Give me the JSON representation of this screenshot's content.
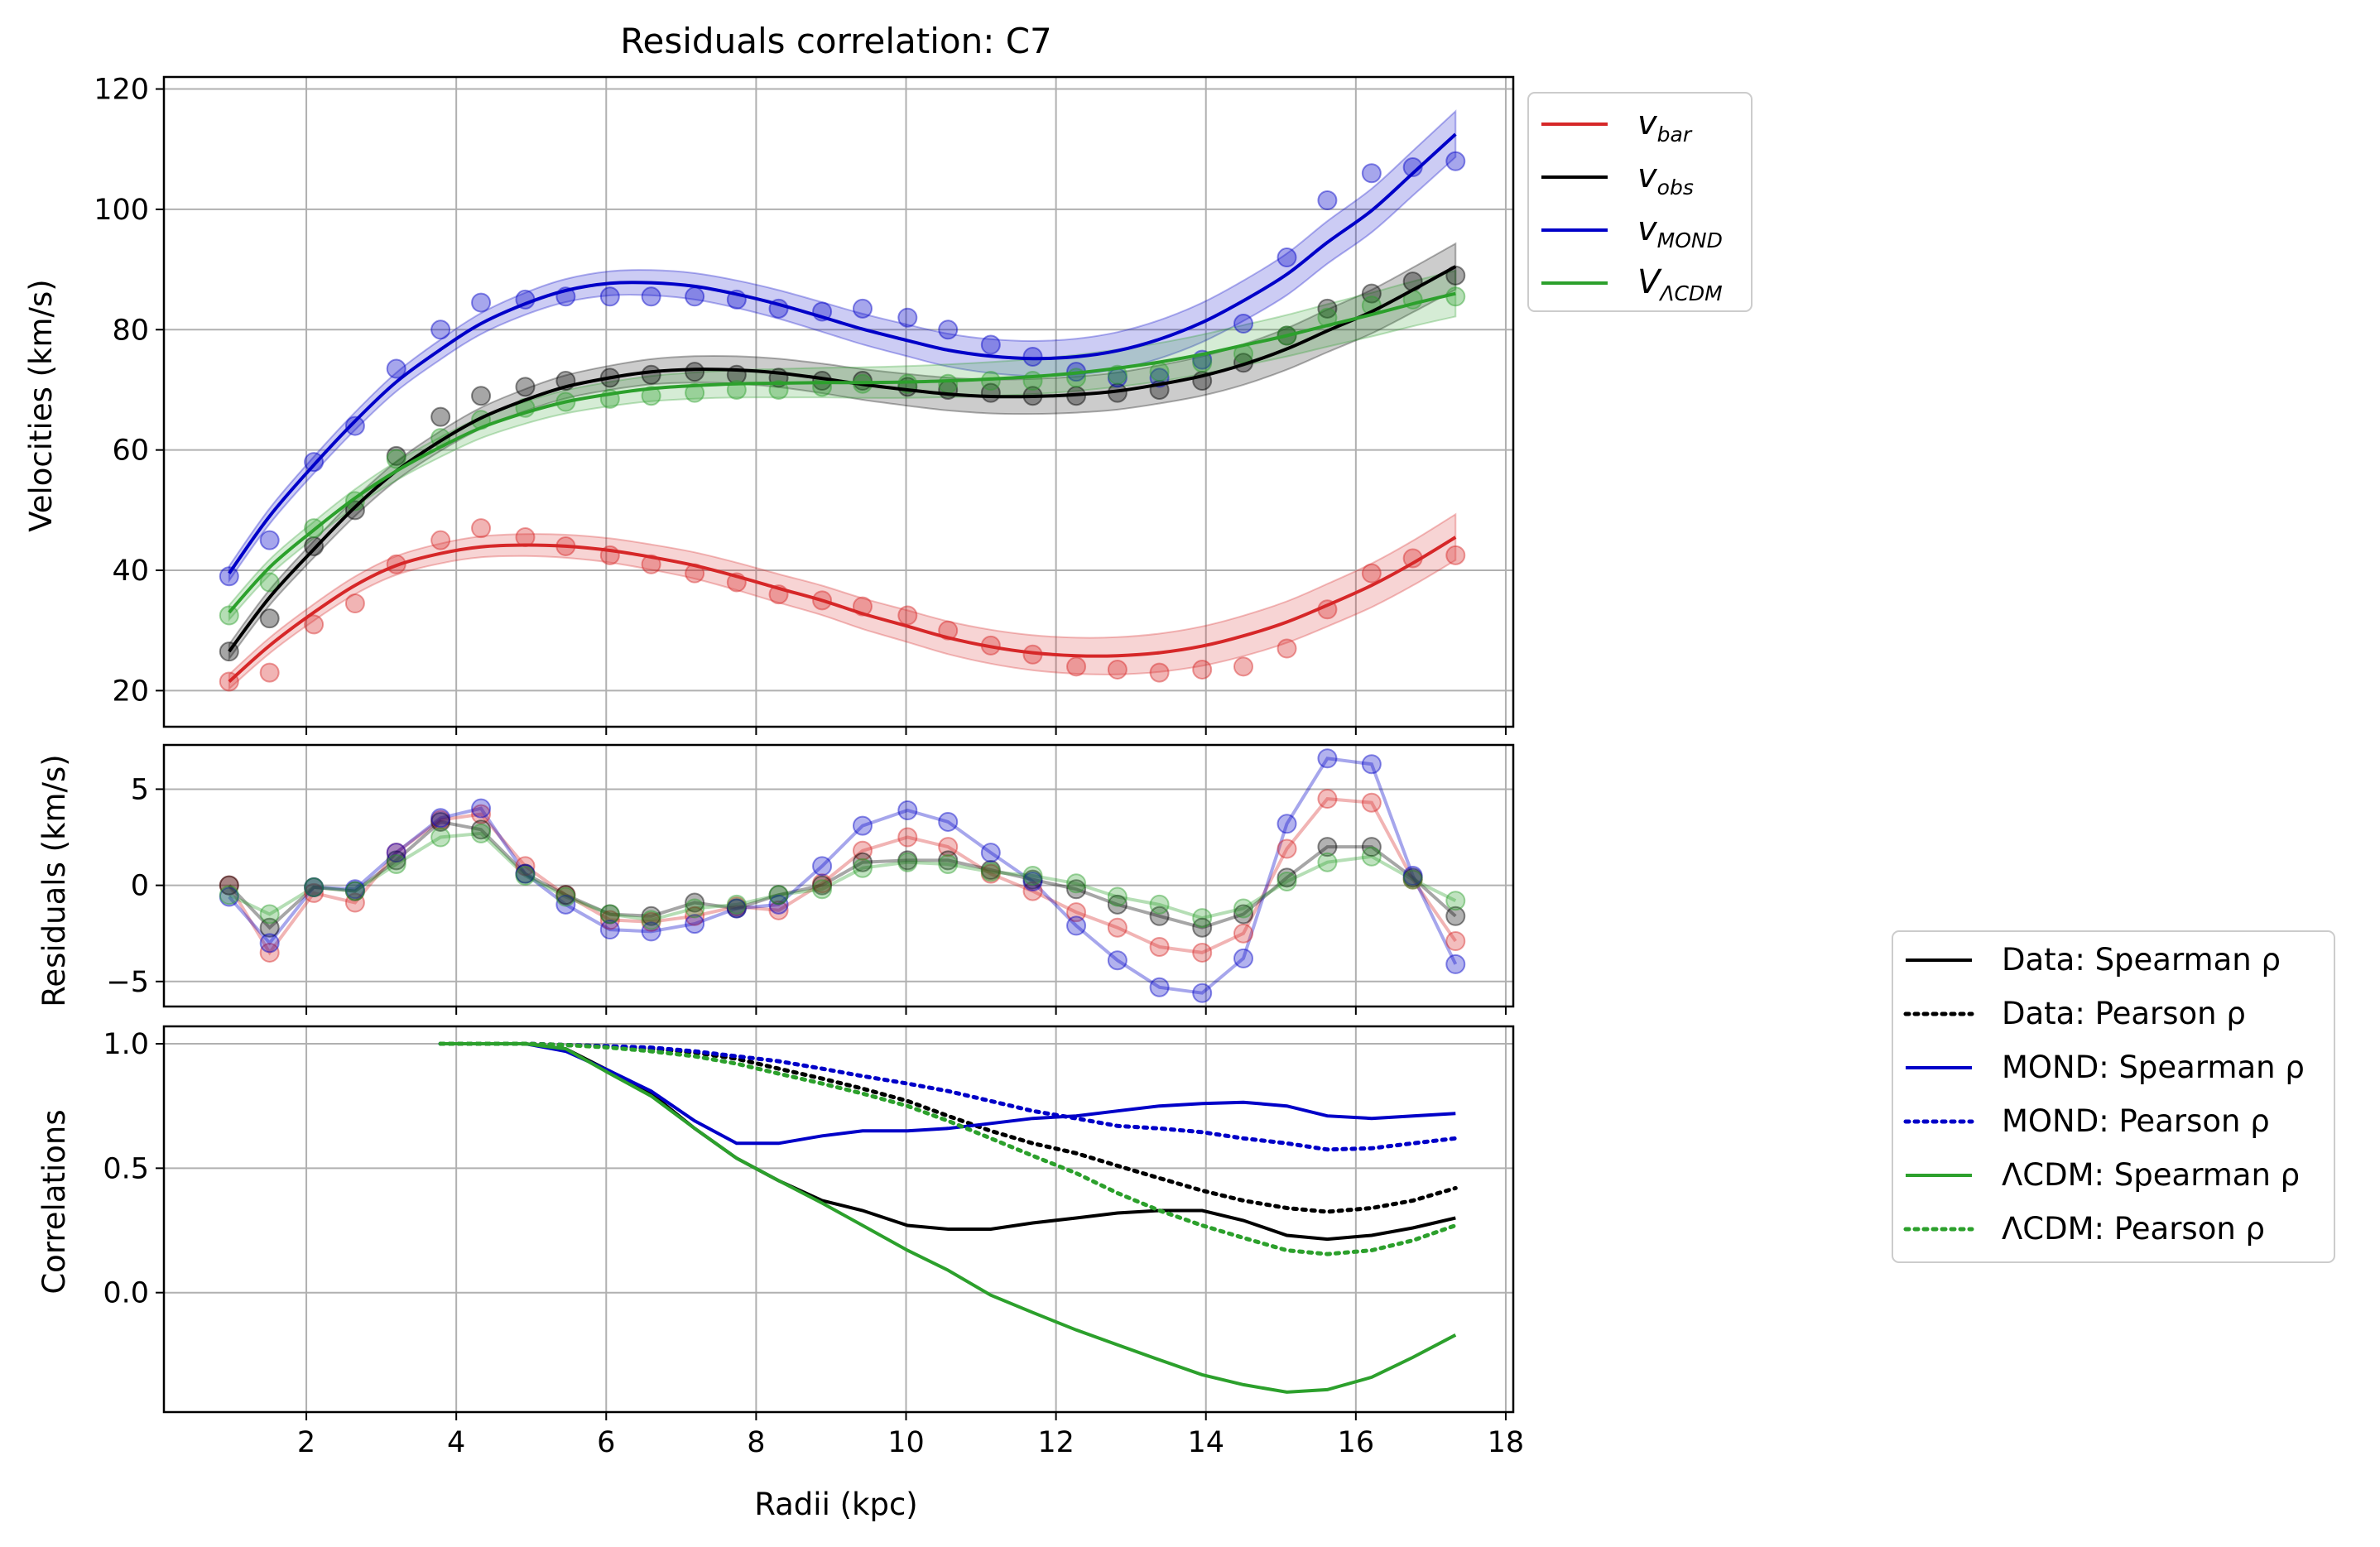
{
  "chart_data": [
    {
      "type": "line",
      "title": "Residuals correlation: C7",
      "xlabel": "",
      "ylabel": "Velocities (km/s)",
      "xlim": [
        0.1,
        18.1
      ],
      "ylim": [
        14,
        122
      ],
      "xticks": [
        2,
        4,
        6,
        8,
        10,
        12,
        14,
        16,
        18
      ],
      "yticks": [
        20,
        40,
        60,
        80,
        100,
        120
      ],
      "grid": true,
      "legend_position": "outside-top-right",
      "x": [
        0.97,
        1.51,
        2.1,
        2.65,
        3.2,
        3.79,
        4.33,
        4.92,
        5.46,
        6.05,
        6.6,
        7.18,
        7.74,
        8.3,
        8.88,
        9.42,
        10.02,
        10.56,
        11.13,
        11.69,
        12.27,
        12.82,
        13.38,
        13.95,
        14.5,
        15.08,
        15.62,
        16.21,
        16.76,
        17.33
      ],
      "series": [
        {
          "name": "v_bar",
          "legend_main": "v",
          "legend_sub": "bar",
          "color": "#d62728",
          "points": [
            21.5,
            23,
            31,
            34.5,
            41,
            45,
            47,
            45.5,
            44,
            42.5,
            41,
            39.5,
            38,
            36,
            35,
            34,
            32.5,
            30,
            27.5,
            26,
            24,
            23.5,
            23,
            23.5,
            24,
            27,
            33.5,
            39.5,
            42,
            42.5
          ],
          "fit": [
            21.5,
            27.5,
            33,
            37.5,
            40.8,
            42.8,
            43.9,
            44.2,
            44,
            43.3,
            42.2,
            40.8,
            39,
            37,
            35,
            32.8,
            30.7,
            28.8,
            27.3,
            26.3,
            25.8,
            25.8,
            26.3,
            27.4,
            29.1,
            31.4,
            34.2,
            37.5,
            41.2,
            45.5
          ]
        },
        {
          "name": "v_obs",
          "legend_main": "v",
          "legend_sub": "obs",
          "color": "#000000",
          "points": [
            26.5,
            32,
            44,
            50,
            59,
            65.5,
            69,
            70.5,
            71.5,
            72,
            72.5,
            73,
            72.5,
            72,
            71.5,
            71.5,
            70.5,
            70,
            69.5,
            69,
            69,
            69.5,
            70,
            71.5,
            74.5,
            79,
            83.5,
            86,
            88,
            89
          ],
          "fit": [
            26.5,
            35.5,
            43.5,
            50.5,
            56.5,
            61.5,
            65.3,
            68.3,
            70.5,
            72,
            73,
            73.4,
            73.3,
            72.8,
            71.9,
            70.9,
            70,
            69.3,
            68.9,
            68.9,
            69.2,
            69.8,
            70.9,
            72.3,
            74.2,
            76.8,
            79.8,
            83,
            86.6,
            90.5
          ]
        },
        {
          "name": "v_MOND",
          "legend_main": "v",
          "legend_sub": "MOND",
          "color": "#0000c8",
          "points": [
            39,
            45,
            58,
            64,
            73.5,
            80,
            84.5,
            85,
            85.5,
            85.5,
            85.5,
            85.5,
            85,
            83.5,
            83,
            83.5,
            82,
            80,
            77.5,
            75.5,
            73,
            72,
            72,
            75,
            81,
            92,
            101.5,
            106,
            107,
            108
          ],
          "fit": [
            39.5,
            49,
            57.5,
            64.8,
            71.3,
            76.7,
            81,
            84.3,
            86.5,
            87.7,
            87.8,
            87.2,
            85.9,
            84.2,
            82.1,
            80.1,
            78.2,
            76.6,
            75.6,
            75.2,
            75.5,
            76.5,
            78.4,
            81.2,
            84.8,
            89.2,
            94.5,
            99.8,
            106,
            112.5
          ]
        },
        {
          "name": "V_ΛCDM",
          "legend_main": "V",
          "legend_sub": "ΛCDM",
          "color": "#2ca02c",
          "points": [
            32.5,
            38,
            47,
            51.5,
            58.5,
            62,
            65,
            67,
            68,
            68.5,
            69,
            69.5,
            70,
            70,
            70.5,
            71,
            71,
            71,
            71.5,
            71.5,
            72,
            72.5,
            73,
            74.5,
            76,
            79,
            82,
            84,
            85,
            85.5
          ],
          "fit": [
            33,
            40.5,
            46.7,
            52,
            56.5,
            60.5,
            63.7,
            66.2,
            68,
            69.3,
            70.2,
            70.7,
            71,
            71.1,
            71.2,
            71.2,
            71.3,
            71.5,
            71.8,
            72.2,
            72.8,
            73.6,
            74.6,
            75.9,
            77.4,
            79,
            80.7,
            82.5,
            84.3,
            86
          ]
        }
      ]
    },
    {
      "type": "line",
      "title": "",
      "xlabel": "",
      "ylabel": "Residuals (km/s)",
      "xlim": [
        0.1,
        18.1
      ],
      "ylim": [
        -6.3,
        7.3
      ],
      "xticks": [
        2,
        4,
        6,
        8,
        10,
        12,
        14,
        16,
        18
      ],
      "yticks": [
        -5,
        0,
        5
      ],
      "ytick_labels": [
        "−5",
        "0",
        "5"
      ],
      "grid": true,
      "x": [
        0.97,
        1.51,
        2.1,
        2.65,
        3.2,
        3.79,
        4.33,
        4.92,
        5.46,
        6.05,
        6.6,
        7.18,
        7.74,
        8.3,
        8.88,
        9.42,
        10.02,
        10.56,
        11.13,
        11.69,
        12.27,
        12.82,
        13.38,
        13.95,
        14.5,
        15.08,
        15.62,
        16.21,
        16.76,
        17.33
      ],
      "series": [
        {
          "name": "bar",
          "color": "#d62728",
          "values": [
            0,
            -3.5,
            -0.4,
            -0.9,
            1.7,
            3.4,
            3.7,
            1.0,
            -0.5,
            -1.8,
            -1.9,
            -1.6,
            -1.1,
            -1.3,
            0.1,
            1.8,
            2.5,
            2.0,
            0.6,
            -0.3,
            -1.4,
            -2.2,
            -3.2,
            -3.5,
            -2.5,
            1.9,
            4.5,
            4.3,
            0.3,
            -2.9
          ]
        },
        {
          "name": "obs",
          "color": "#000000",
          "values": [
            0,
            -2.2,
            -0.1,
            -0.3,
            1.3,
            3.3,
            2.9,
            0.6,
            -0.5,
            -1.5,
            -1.6,
            -0.9,
            -1.2,
            -0.5,
            0,
            1.2,
            1.3,
            1.3,
            0.8,
            0.3,
            -0.2,
            -1.0,
            -1.6,
            -2.2,
            -1.5,
            0.4,
            2.0,
            2.0,
            0.4,
            -1.6
          ]
        },
        {
          "name": "MOND",
          "color": "#0000c8",
          "values": [
            -0.6,
            -3.0,
            -0.1,
            -0.2,
            1.7,
            3.5,
            4.0,
            0.6,
            -1.0,
            -2.3,
            -2.4,
            -2.0,
            -1.2,
            -1.0,
            1.0,
            3.1,
            3.9,
            3.3,
            1.7,
            0.2,
            -2.1,
            -3.9,
            -5.3,
            -5.6,
            -3.8,
            3.2,
            6.6,
            6.3,
            0.5,
            -4.1
          ]
        },
        {
          "name": "ΛCDM",
          "color": "#2ca02c",
          "values": [
            -0.5,
            -1.5,
            -0.1,
            -0.3,
            1.1,
            2.5,
            2.7,
            0.5,
            -0.6,
            -1.5,
            -1.8,
            -1.2,
            -1.0,
            -0.5,
            -0.2,
            0.9,
            1.2,
            1.1,
            0.7,
            0.5,
            0.1,
            -0.6,
            -1.0,
            -1.7,
            -1.2,
            0.2,
            1.2,
            1.5,
            0.3,
            -0.8
          ]
        }
      ]
    },
    {
      "type": "line",
      "title": "",
      "xlabel": "Radii (kpc)",
      "ylabel": "Correlations",
      "xlim": [
        0.1,
        18.1
      ],
      "ylim": [
        -0.48,
        1.07
      ],
      "xticks": [
        2,
        4,
        6,
        8,
        10,
        12,
        14,
        16,
        18
      ],
      "xtick_labels": [
        "2",
        "4",
        "6",
        "8",
        "10",
        "12",
        "14",
        "16",
        "18"
      ],
      "yticks": [
        0,
        0.5,
        1
      ],
      "ytick_labels": [
        "0.0",
        "0.5",
        "1.0"
      ],
      "grid": true,
      "legend_position": "outside-right",
      "x": [
        3.79,
        4.33,
        4.92,
        5.46,
        6.05,
        6.6,
        7.18,
        7.74,
        8.3,
        8.88,
        9.42,
        10.02,
        10.56,
        11.13,
        11.69,
        12.27,
        12.82,
        13.38,
        13.95,
        14.5,
        15.08,
        15.62,
        16.21,
        16.76,
        17.33
      ],
      "series": [
        {
          "name": "Data: Spearman ρ",
          "color": "#000000",
          "style": "solid",
          "values": [
            1.0,
            1.0,
            1.0,
            0.98,
            0.89,
            0.8,
            0.66,
            0.54,
            0.45,
            0.37,
            0.33,
            0.27,
            0.255,
            0.255,
            0.28,
            0.3,
            0.32,
            0.33,
            0.33,
            0.29,
            0.23,
            0.215,
            0.23,
            0.26,
            0.3
          ]
        },
        {
          "name": "Data: Pearson ρ",
          "color": "#000000",
          "style": "dotted",
          "values": [
            1.0,
            1.0,
            1.0,
            0.995,
            0.99,
            0.98,
            0.965,
            0.94,
            0.9,
            0.86,
            0.82,
            0.77,
            0.71,
            0.65,
            0.6,
            0.56,
            0.51,
            0.46,
            0.41,
            0.37,
            0.34,
            0.325,
            0.34,
            0.37,
            0.42
          ]
        },
        {
          "name": "MOND: Spearman ρ",
          "color": "#0000c8",
          "style": "solid",
          "values": [
            1.0,
            1.0,
            1.0,
            0.97,
            0.89,
            0.81,
            0.69,
            0.6,
            0.6,
            0.63,
            0.65,
            0.65,
            0.66,
            0.68,
            0.7,
            0.71,
            0.73,
            0.75,
            0.76,
            0.765,
            0.75,
            0.71,
            0.7,
            0.71,
            0.72
          ]
        },
        {
          "name": "MOND: Pearson ρ",
          "color": "#0000c8",
          "style": "dotted",
          "values": [
            1.0,
            1.0,
            1.0,
            0.995,
            0.99,
            0.985,
            0.97,
            0.95,
            0.93,
            0.9,
            0.87,
            0.84,
            0.81,
            0.77,
            0.73,
            0.7,
            0.67,
            0.66,
            0.645,
            0.62,
            0.6,
            0.575,
            0.58,
            0.6,
            0.62
          ]
        },
        {
          "name": "ΛCDM: Spearman ρ",
          "color": "#2ca02c",
          "style": "solid",
          "values": [
            1.0,
            1.0,
            1.0,
            0.98,
            0.88,
            0.79,
            0.66,
            0.54,
            0.45,
            0.36,
            0.27,
            0.17,
            0.09,
            -0.01,
            -0.08,
            -0.15,
            -0.21,
            -0.27,
            -0.33,
            -0.37,
            -0.4,
            -0.39,
            -0.34,
            -0.26,
            -0.17
          ]
        },
        {
          "name": "ΛCDM: Pearson ρ",
          "color": "#2ca02c",
          "style": "dotted",
          "values": [
            1.0,
            1.0,
            1.0,
            0.995,
            0.985,
            0.97,
            0.95,
            0.92,
            0.88,
            0.84,
            0.8,
            0.75,
            0.69,
            0.62,
            0.55,
            0.48,
            0.4,
            0.33,
            0.27,
            0.22,
            0.17,
            0.155,
            0.17,
            0.21,
            0.27
          ]
        }
      ]
    }
  ]
}
